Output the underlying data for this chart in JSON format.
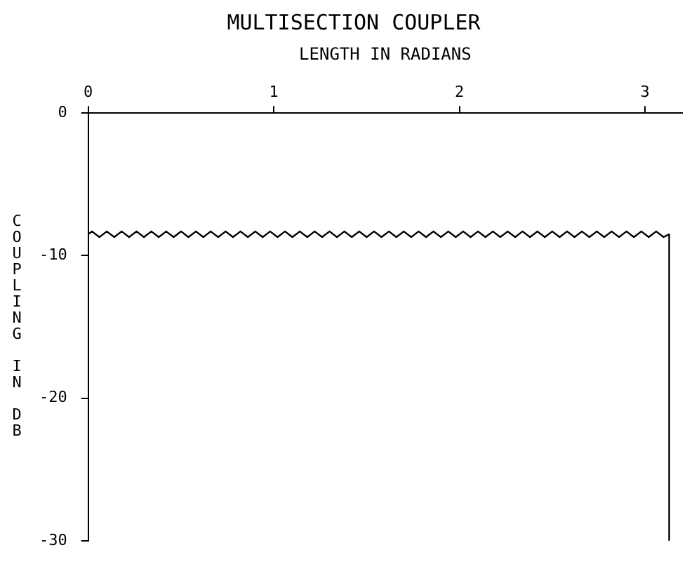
{
  "chart_data": {
    "type": "line",
    "title": "MULTISECTION COUPLER",
    "xlabel": "LENGTH IN RADIANS",
    "ylabel": "COUPLING IN DB",
    "xlim": [
      0,
      3.2
    ],
    "xticks": [
      0,
      1,
      2,
      3
    ],
    "ylim": [
      -30,
      0
    ],
    "yticks": [
      0,
      -10,
      -20,
      -30
    ],
    "grid": false,
    "legend": false,
    "marker": "none",
    "line_style": "solid",
    "series": [
      {
        "color": "#000000",
        "x": [
          0,
          0,
          0.02,
          0.06,
          0.1,
          0.14,
          0.18,
          0.22,
          0.26,
          0.3,
          0.34,
          0.38,
          0.42,
          0.46,
          0.5,
          0.54,
          0.58,
          0.62,
          0.66,
          0.7,
          0.74,
          0.78,
          0.82,
          0.86,
          0.9,
          0.94,
          0.98,
          1.02,
          1.06,
          1.1,
          1.14,
          1.18,
          1.22,
          1.26,
          1.3,
          1.34,
          1.38,
          1.42,
          1.46,
          1.5,
          1.54,
          1.58,
          1.62,
          1.66,
          1.7,
          1.74,
          1.78,
          1.82,
          1.86,
          1.9,
          1.94,
          1.98,
          2.02,
          2.06,
          2.1,
          2.14,
          2.18,
          2.22,
          2.26,
          2.3,
          2.34,
          2.38,
          2.42,
          2.46,
          2.5,
          2.54,
          2.58,
          2.62,
          2.66,
          2.7,
          2.74,
          2.78,
          2.82,
          2.86,
          2.9,
          2.94,
          2.98,
          3.02,
          3.06,
          3.1,
          3.13,
          3.13
        ],
        "values": [
          -30,
          -8.5,
          -8.3,
          -8.7,
          -8.3,
          -8.7,
          -8.3,
          -8.7,
          -8.3,
          -8.7,
          -8.3,
          -8.7,
          -8.3,
          -8.7,
          -8.3,
          -8.7,
          -8.3,
          -8.7,
          -8.3,
          -8.7,
          -8.3,
          -8.7,
          -8.3,
          -8.7,
          -8.3,
          -8.7,
          -8.3,
          -8.7,
          -8.3,
          -8.7,
          -8.3,
          -8.7,
          -8.3,
          -8.7,
          -8.3,
          -8.7,
          -8.3,
          -8.7,
          -8.3,
          -8.7,
          -8.3,
          -8.7,
          -8.3,
          -8.7,
          -8.3,
          -8.7,
          -8.3,
          -8.7,
          -8.3,
          -8.7,
          -8.3,
          -8.7,
          -8.3,
          -8.7,
          -8.3,
          -8.7,
          -8.3,
          -8.7,
          -8.3,
          -8.7,
          -8.3,
          -8.7,
          -8.3,
          -8.7,
          -8.3,
          -8.7,
          -8.3,
          -8.7,
          -8.3,
          -8.7,
          -8.3,
          -8.7,
          -8.3,
          -8.7,
          -8.3,
          -8.7,
          -8.3,
          -8.7,
          -8.3,
          -8.7,
          -8.5,
          -30
        ]
      }
    ]
  }
}
